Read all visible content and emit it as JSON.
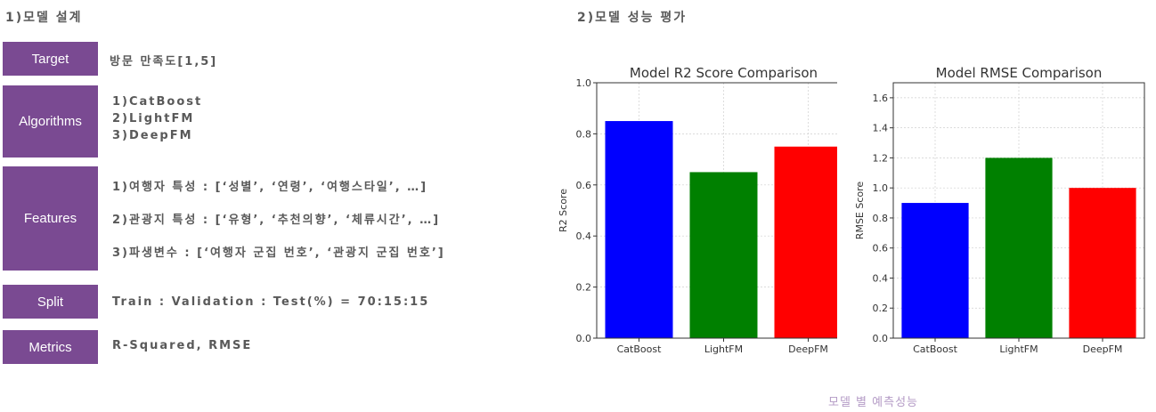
{
  "section1": {
    "title": "1)모델 설계",
    "rows": [
      {
        "label": "Target",
        "values": [
          "방문 만족도[1,5]"
        ]
      },
      {
        "label": "Algorithms",
        "values": [
          "1)CatBoost",
          "2)LightFM",
          "3)DeepFM"
        ]
      },
      {
        "label": "Features",
        "values": [
          "1)여행자 특성 : [‘성별’, ‘연령’, ‘여행스타일’, …]",
          "2)관광지 특성 : [‘유형’, ‘추천의향’, ‘체류시간’, …]",
          "3)파생변수 : [‘여행자 군집 번호’, ‘관광지 군집 번호’]"
        ]
      },
      {
        "label": "Split",
        "values": [
          "Train : Validation : Test(%) = 70:15:15"
        ]
      },
      {
        "label": "Metrics",
        "values": [
          "R-Squared, RMSE"
        ]
      }
    ]
  },
  "section2": {
    "title": "2)모델 성능 평가",
    "caption": "모델 별 예측성능"
  },
  "chart_data": [
    {
      "type": "bar",
      "title": "Model R2 Score Comparison",
      "xlabel": "",
      "ylabel": "R2 Score",
      "categories": [
        "CatBoost",
        "LightFM",
        "DeepFM"
      ],
      "values": [
        0.85,
        0.65,
        0.75
      ],
      "colors": [
        "#0000ff",
        "#008000",
        "#ff0000"
      ],
      "ylim": [
        0,
        1.0
      ],
      "yticks": [
        "0.0",
        "0.2",
        "0.4",
        "0.6",
        "0.8",
        "1.0"
      ],
      "grid": true
    },
    {
      "type": "bar",
      "title": "Model RMSE Comparison",
      "xlabel": "",
      "ylabel": "RMSE Score",
      "categories": [
        "CatBoost",
        "LightFM",
        "DeepFM"
      ],
      "values": [
        0.9,
        1.2,
        1.0
      ],
      "colors": [
        "#0000ff",
        "#008000",
        "#ff0000"
      ],
      "ylim": [
        0,
        1.7
      ],
      "yticks": [
        "0.0",
        "0.2",
        "0.4",
        "0.6",
        "0.8",
        "1.0",
        "1.2",
        "1.4",
        "1.6"
      ],
      "grid": true
    }
  ]
}
